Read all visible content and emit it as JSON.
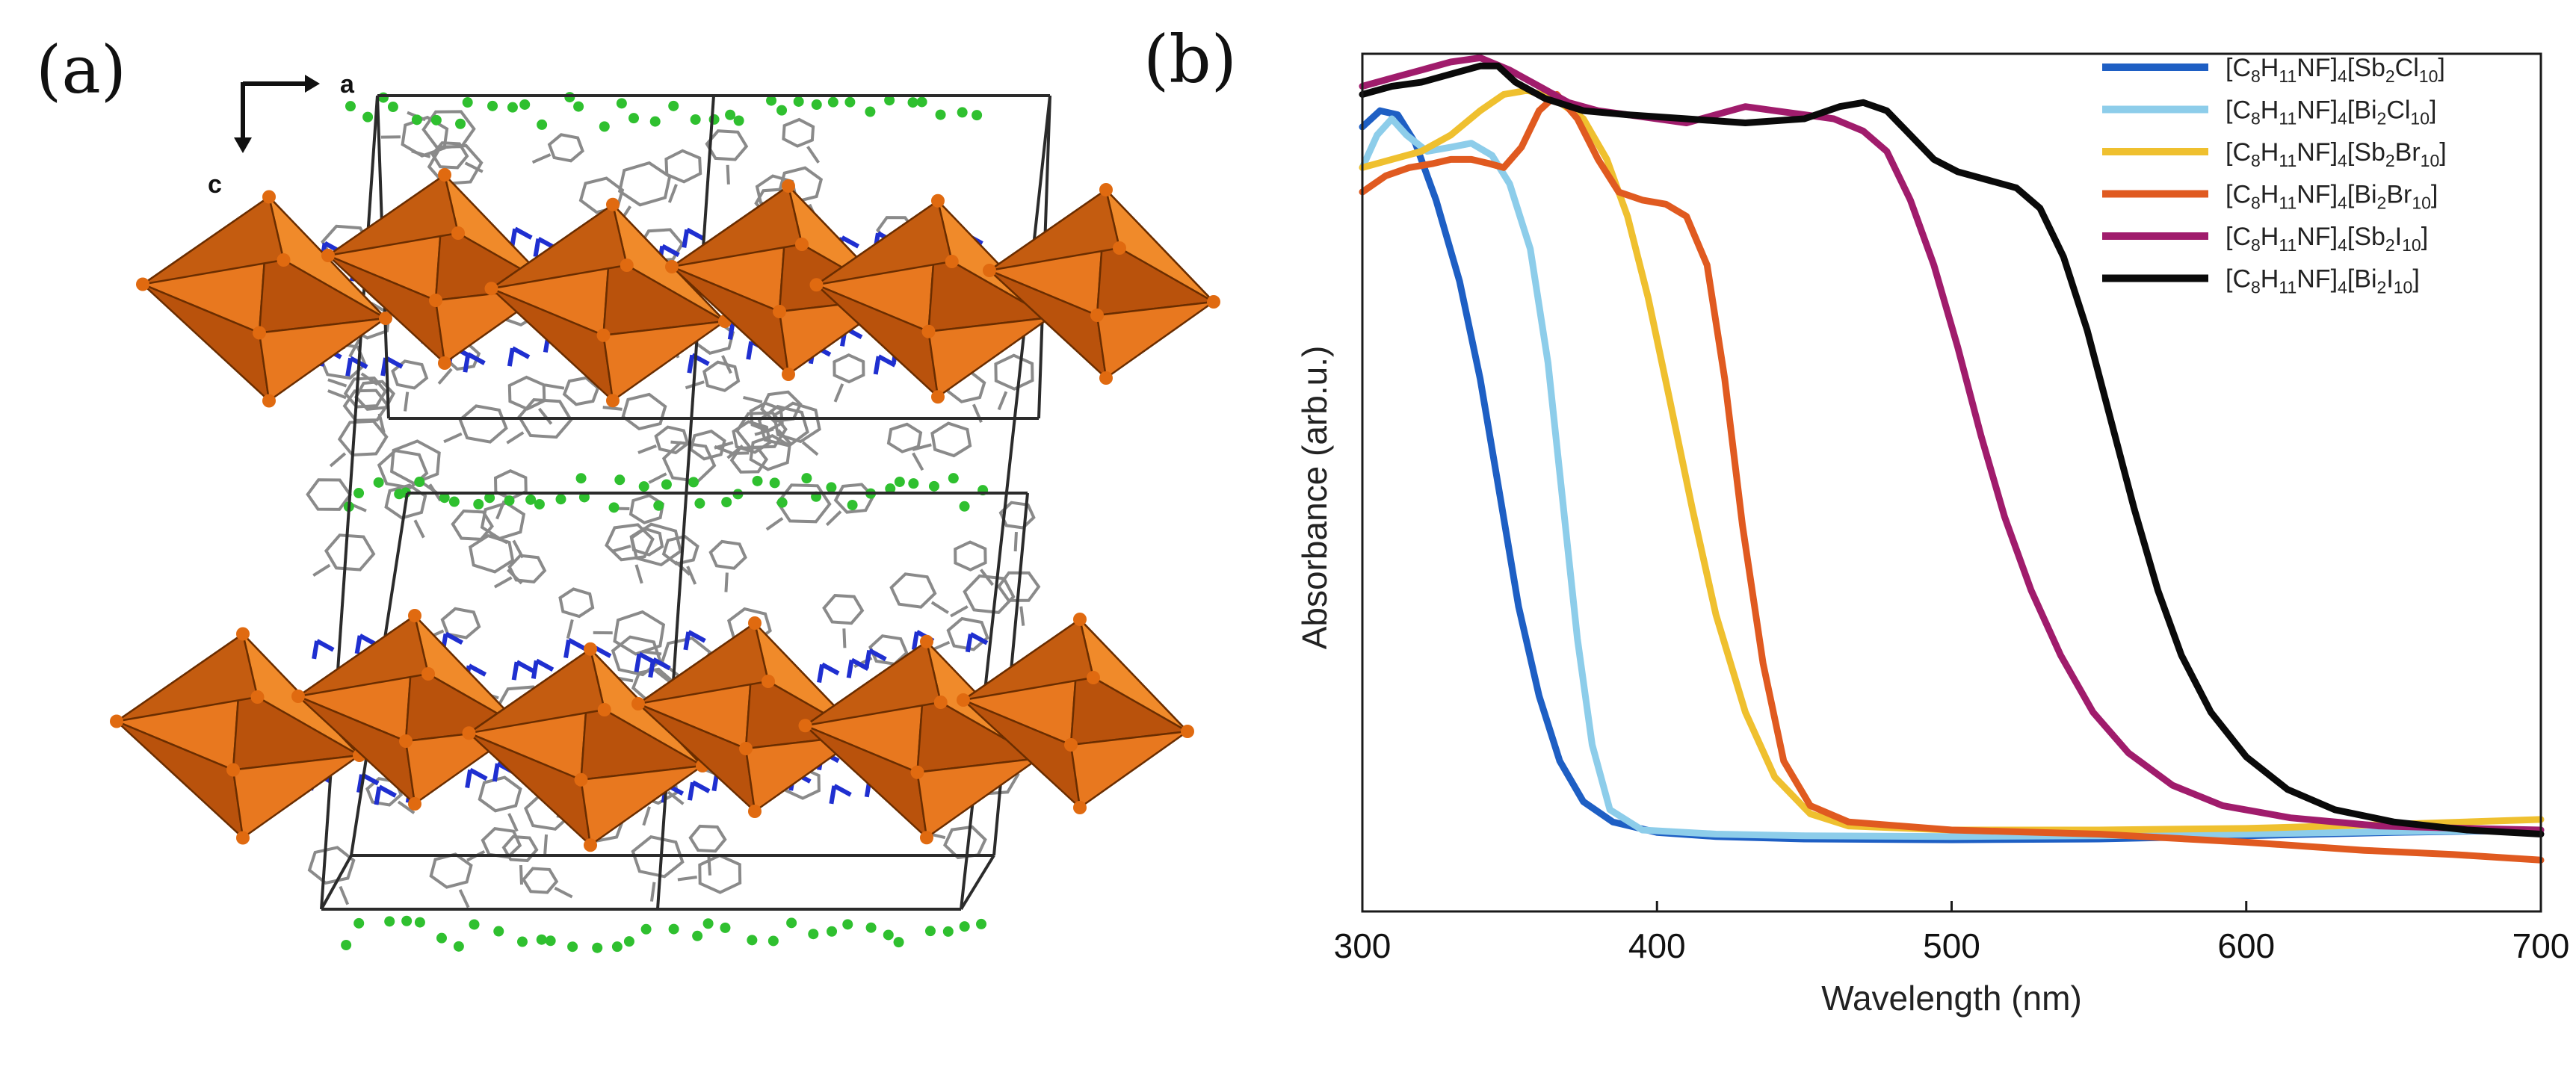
{
  "panel_a": {
    "label": "(a)",
    "axis_a": "a",
    "axis_c": "c",
    "colors": {
      "octahedron": "#e8781f",
      "octahedron_dark": "#b9520c",
      "frame": "#2b2b2b",
      "organic": "#8a8a8a",
      "nitrogen": "#1f2fd0",
      "fluorine": "#2fc02f"
    }
  },
  "panel_b": {
    "label": "(b)"
  },
  "chart_data": {
    "type": "line",
    "title": "",
    "xlabel": "Wavelength (nm)",
    "ylabel": "Absorbance (arb.u.)",
    "xlim": [
      300,
      700
    ],
    "ylim": [
      0,
      1
    ],
    "xticks": [
      300,
      400,
      500,
      600,
      700
    ],
    "legend_position": "top-right",
    "series": [
      {
        "name": "[C8H11NF]4[Sb2Cl10]",
        "label_parts": [
          "[C",
          "8",
          "H",
          "11",
          "NF]",
          "4",
          "[Sb",
          "2",
          "Cl",
          "10",
          "]"
        ],
        "color": "#1e5fc4",
        "points": [
          [
            300,
            0.91
          ],
          [
            306,
            0.93
          ],
          [
            312,
            0.925
          ],
          [
            318,
            0.89
          ],
          [
            325,
            0.82
          ],
          [
            333,
            0.72
          ],
          [
            340,
            0.6
          ],
          [
            347,
            0.45
          ],
          [
            353,
            0.32
          ],
          [
            360,
            0.21
          ],
          [
            367,
            0.13
          ],
          [
            375,
            0.08
          ],
          [
            385,
            0.055
          ],
          [
            400,
            0.042
          ],
          [
            420,
            0.037
          ],
          [
            450,
            0.034
          ],
          [
            500,
            0.033
          ],
          [
            550,
            0.034
          ],
          [
            600,
            0.038
          ],
          [
            650,
            0.042
          ],
          [
            700,
            0.045
          ]
        ]
      },
      {
        "name": "[C8H11NF]4[Bi2Cl10]",
        "label_parts": [
          "[C",
          "8",
          "H",
          "11",
          "NF]",
          "4",
          "[Bi",
          "2",
          "Cl",
          "10",
          "]"
        ],
        "color": "#8dcdea",
        "points": [
          [
            300,
            0.86
          ],
          [
            305,
            0.9
          ],
          [
            310,
            0.92
          ],
          [
            315,
            0.9
          ],
          [
            322,
            0.88
          ],
          [
            330,
            0.885
          ],
          [
            337,
            0.89
          ],
          [
            344,
            0.875
          ],
          [
            350,
            0.84
          ],
          [
            357,
            0.76
          ],
          [
            363,
            0.62
          ],
          [
            368,
            0.45
          ],
          [
            373,
            0.28
          ],
          [
            378,
            0.15
          ],
          [
            384,
            0.07
          ],
          [
            395,
            0.045
          ],
          [
            420,
            0.04
          ],
          [
            450,
            0.038
          ],
          [
            500,
            0.037
          ],
          [
            550,
            0.038
          ],
          [
            600,
            0.04
          ],
          [
            650,
            0.043
          ],
          [
            700,
            0.045
          ]
        ]
      },
      {
        "name": "[C8H11NF]4[Sb2Br10]",
        "label_parts": [
          "[C",
          "8",
          "H",
          "11",
          "NF]",
          "4",
          "[Sb",
          "2",
          "Br",
          "10",
          "]"
        ],
        "color": "#efc02f",
        "points": [
          [
            300,
            0.86
          ],
          [
            310,
            0.87
          ],
          [
            320,
            0.88
          ],
          [
            330,
            0.9
          ],
          [
            340,
            0.93
          ],
          [
            348,
            0.95
          ],
          [
            356,
            0.955
          ],
          [
            365,
            0.945
          ],
          [
            375,
            0.92
          ],
          [
            383,
            0.87
          ],
          [
            390,
            0.8
          ],
          [
            397,
            0.7
          ],
          [
            404,
            0.58
          ],
          [
            412,
            0.44
          ],
          [
            420,
            0.31
          ],
          [
            430,
            0.19
          ],
          [
            440,
            0.11
          ],
          [
            452,
            0.065
          ],
          [
            465,
            0.05
          ],
          [
            500,
            0.045
          ],
          [
            550,
            0.045
          ],
          [
            600,
            0.047
          ],
          [
            650,
            0.052
          ],
          [
            700,
            0.058
          ]
        ]
      },
      {
        "name": "[C8H11NF]4[Bi2Br10]",
        "label_parts": [
          "[C",
          "8",
          "H",
          "11",
          "NF]",
          "4",
          "[Bi",
          "2",
          "Br",
          "10",
          "]"
        ],
        "color": "#e05a20",
        "points": [
          [
            300,
            0.83
          ],
          [
            308,
            0.85
          ],
          [
            316,
            0.86
          ],
          [
            324,
            0.865
          ],
          [
            330,
            0.87
          ],
          [
            337,
            0.87
          ],
          [
            343,
            0.865
          ],
          [
            348,
            0.86
          ],
          [
            354,
            0.885
          ],
          [
            360,
            0.93
          ],
          [
            366,
            0.95
          ],
          [
            373,
            0.92
          ],
          [
            380,
            0.87
          ],
          [
            387,
            0.83
          ],
          [
            395,
            0.82
          ],
          [
            403,
            0.815
          ],
          [
            410,
            0.8
          ],
          [
            417,
            0.74
          ],
          [
            423,
            0.6
          ],
          [
            429,
            0.42
          ],
          [
            436,
            0.25
          ],
          [
            443,
            0.13
          ],
          [
            452,
            0.075
          ],
          [
            465,
            0.055
          ],
          [
            500,
            0.045
          ],
          [
            550,
            0.04
          ],
          [
            600,
            0.03
          ],
          [
            640,
            0.02
          ],
          [
            670,
            0.015
          ],
          [
            700,
            0.008
          ]
        ]
      },
      {
        "name": "[C8H11NF]4[Sb2I10]",
        "label_parts": [
          "[C",
          "8",
          "H",
          "11",
          "NF]",
          "4",
          "[Sb",
          "2",
          "I",
          "10",
          "]"
        ],
        "color": "#a01c6c",
        "points": [
          [
            300,
            0.96
          ],
          [
            310,
            0.97
          ],
          [
            320,
            0.98
          ],
          [
            330,
            0.99
          ],
          [
            340,
            0.995
          ],
          [
            350,
            0.98
          ],
          [
            360,
            0.96
          ],
          [
            370,
            0.94
          ],
          [
            380,
            0.93
          ],
          [
            390,
            0.925
          ],
          [
            400,
            0.92
          ],
          [
            410,
            0.915
          ],
          [
            420,
            0.925
          ],
          [
            430,
            0.935
          ],
          [
            440,
            0.93
          ],
          [
            450,
            0.925
          ],
          [
            460,
            0.92
          ],
          [
            470,
            0.905
          ],
          [
            478,
            0.88
          ],
          [
            486,
            0.82
          ],
          [
            494,
            0.74
          ],
          [
            502,
            0.64
          ],
          [
            510,
            0.53
          ],
          [
            518,
            0.43
          ],
          [
            527,
            0.34
          ],
          [
            537,
            0.26
          ],
          [
            548,
            0.19
          ],
          [
            560,
            0.14
          ],
          [
            575,
            0.1
          ],
          [
            592,
            0.075
          ],
          [
            615,
            0.06
          ],
          [
            645,
            0.05
          ],
          [
            675,
            0.047
          ],
          [
            700,
            0.045
          ]
        ]
      },
      {
        "name": "[C8H11NF]4[Bi2I10]",
        "label_parts": [
          "[C",
          "8",
          "H",
          "11",
          "NF]",
          "4",
          "[Bi",
          "2",
          "I",
          "10",
          "]"
        ],
        "color": "#0a0a0a",
        "points": [
          [
            300,
            0.95
          ],
          [
            310,
            0.96
          ],
          [
            320,
            0.965
          ],
          [
            330,
            0.975
          ],
          [
            340,
            0.985
          ],
          [
            346,
            0.985
          ],
          [
            352,
            0.965
          ],
          [
            362,
            0.945
          ],
          [
            375,
            0.93
          ],
          [
            390,
            0.925
          ],
          [
            410,
            0.92
          ],
          [
            430,
            0.915
          ],
          [
            450,
            0.92
          ],
          [
            462,
            0.935
          ],
          [
            470,
            0.94
          ],
          [
            478,
            0.93
          ],
          [
            486,
            0.9
          ],
          [
            494,
            0.87
          ],
          [
            502,
            0.855
          ],
          [
            512,
            0.845
          ],
          [
            522,
            0.835
          ],
          [
            530,
            0.81
          ],
          [
            538,
            0.75
          ],
          [
            546,
            0.66
          ],
          [
            554,
            0.55
          ],
          [
            562,
            0.44
          ],
          [
            570,
            0.34
          ],
          [
            578,
            0.26
          ],
          [
            588,
            0.19
          ],
          [
            600,
            0.135
          ],
          [
            614,
            0.095
          ],
          [
            630,
            0.07
          ],
          [
            650,
            0.055
          ],
          [
            675,
            0.045
          ],
          [
            700,
            0.04
          ]
        ]
      }
    ]
  }
}
